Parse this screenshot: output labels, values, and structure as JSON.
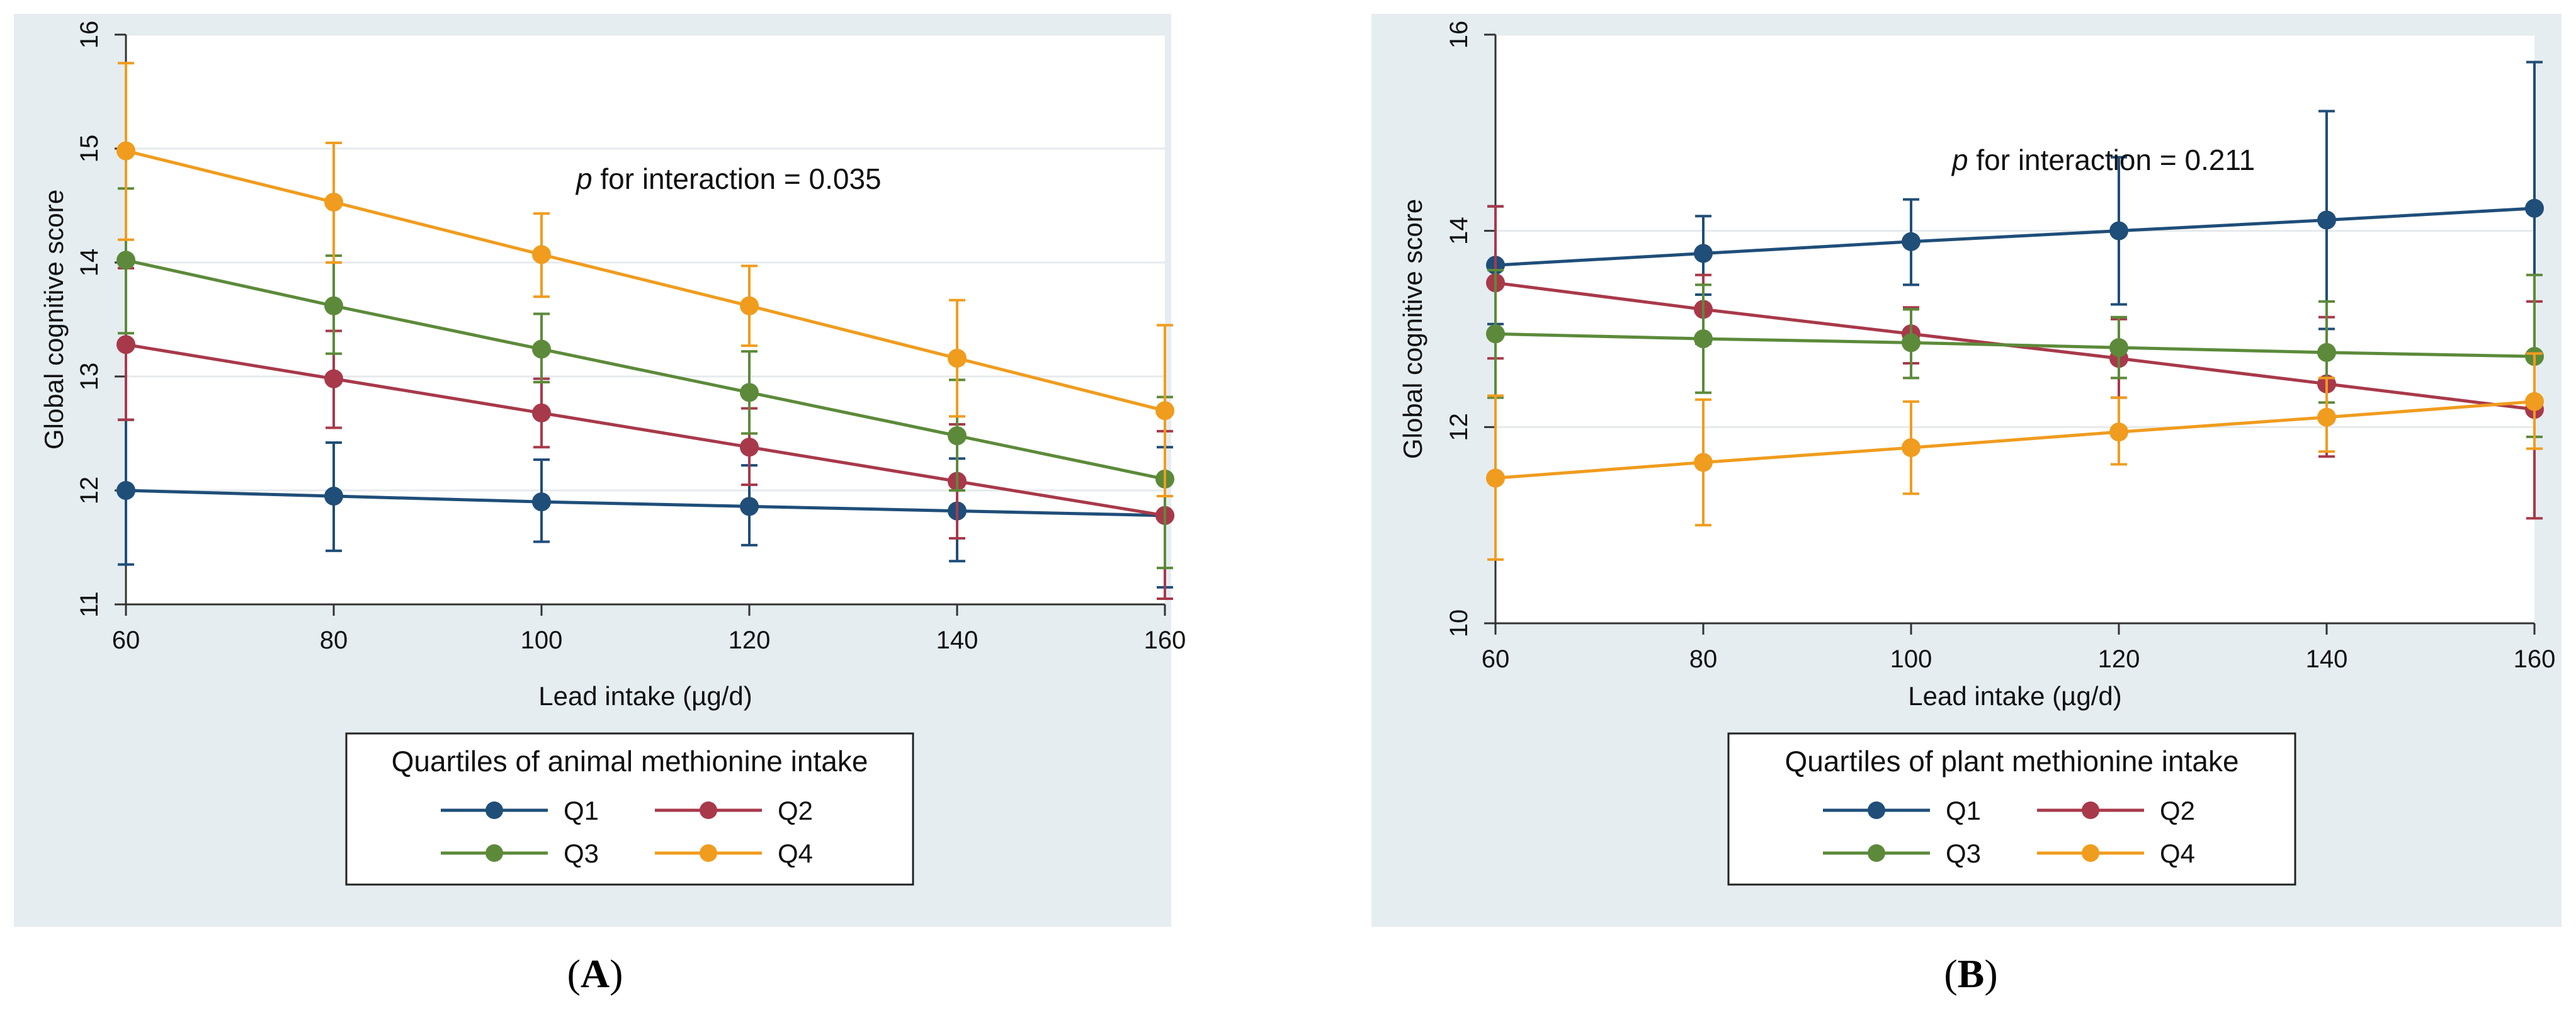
{
  "chart_data": [
    {
      "type": "line",
      "panel_label": "A",
      "x": [
        60,
        80,
        100,
        120,
        140,
        160
      ],
      "xlabel": "Lead intake (µg/d)",
      "ylabel": "Global cognitive score",
      "xlim": [
        60,
        160
      ],
      "ylim": [
        11,
        16
      ],
      "xticks": [
        60,
        80,
        100,
        120,
        140,
        160
      ],
      "yticks": [
        11,
        12,
        13,
        14,
        15,
        16
      ],
      "grid": true,
      "annotation": {
        "italic": "p",
        "text": " for interaction = 0.035"
      },
      "legend": {
        "title": "Quartiles of animal methionine intake",
        "placement": "bottom"
      },
      "series": [
        {
          "name": "Q1",
          "color": "#1f4e79",
          "values": [
            12.0,
            11.95,
            11.9,
            11.86,
            11.82,
            11.78
          ],
          "ci_lower": [
            11.35,
            11.47,
            11.55,
            11.52,
            11.38,
            11.15
          ],
          "ci_upper": [
            12.62,
            12.42,
            12.27,
            12.22,
            12.28,
            12.38
          ]
        },
        {
          "name": "Q2",
          "color": "#a8394a",
          "values": [
            13.28,
            12.98,
            12.68,
            12.38,
            12.08,
            11.78
          ],
          "ci_lower": [
            12.62,
            12.55,
            12.38,
            12.05,
            11.58,
            11.05
          ],
          "ci_upper": [
            13.95,
            13.4,
            12.98,
            12.72,
            12.58,
            12.52
          ]
        },
        {
          "name": "Q3",
          "color": "#5c8a3a",
          "values": [
            14.02,
            13.62,
            13.24,
            12.86,
            12.48,
            12.1
          ],
          "ci_lower": [
            13.38,
            13.2,
            12.95,
            12.5,
            12.0,
            11.32
          ],
          "ci_upper": [
            14.65,
            14.06,
            13.55,
            13.22,
            12.97,
            12.82
          ]
        },
        {
          "name": "Q4",
          "color": "#f09c1e",
          "values": [
            14.98,
            14.53,
            14.07,
            13.62,
            13.16,
            12.7
          ],
          "ci_lower": [
            14.2,
            14.0,
            13.7,
            13.27,
            12.65,
            11.95
          ],
          "ci_upper": [
            15.75,
            15.05,
            14.43,
            13.97,
            13.67,
            13.45
          ]
        }
      ]
    },
    {
      "type": "line",
      "panel_label": "B",
      "x": [
        60,
        80,
        100,
        120,
        140,
        160
      ],
      "xlabel": "Lead intake (µg/d)",
      "ylabel": "Global cognitive score",
      "xlim": [
        60,
        160
      ],
      "ylim": [
        10,
        16
      ],
      "xticks": [
        60,
        80,
        100,
        120,
        140,
        160
      ],
      "yticks": [
        10,
        12,
        14,
        16
      ],
      "grid": true,
      "annotation": {
        "italic": "p",
        "text": " for interaction = 0.211"
      },
      "legend": {
        "title": "Quartiles of plant methionine intake",
        "placement": "bottom"
      },
      "series": [
        {
          "name": "Q1",
          "color": "#1f4e79",
          "values": [
            13.65,
            13.77,
            13.89,
            14.0,
            14.11,
            14.23
          ],
          "ci_lower": [
            13.05,
            13.35,
            13.45,
            13.25,
            13.0,
            12.75
          ],
          "ci_upper": [
            14.25,
            14.15,
            14.32,
            14.75,
            15.22,
            15.72
          ]
        },
        {
          "name": "Q2",
          "color": "#a8394a",
          "values": [
            13.47,
            13.2,
            12.95,
            12.7,
            12.44,
            12.18
          ],
          "ci_lower": [
            12.7,
            12.85,
            12.65,
            12.3,
            11.7,
            11.07
          ],
          "ci_upper": [
            14.25,
            13.55,
            13.22,
            13.1,
            13.12,
            13.28
          ]
        },
        {
          "name": "Q3",
          "color": "#5c8a3a",
          "values": [
            12.95,
            12.9,
            12.86,
            12.81,
            12.76,
            12.72
          ],
          "ci_lower": [
            12.3,
            12.35,
            12.5,
            12.5,
            12.25,
            11.9
          ],
          "ci_upper": [
            13.6,
            13.45,
            13.2,
            13.12,
            13.28,
            13.55
          ]
        },
        {
          "name": "Q4",
          "color": "#f09c1e",
          "values": [
            11.48,
            11.64,
            11.79,
            11.95,
            12.1,
            12.26
          ],
          "ci_lower": [
            10.65,
            11.0,
            11.32,
            11.62,
            11.75,
            11.78
          ],
          "ci_upper": [
            12.32,
            12.28,
            12.26,
            12.3,
            12.5,
            12.75
          ]
        }
      ]
    }
  ]
}
